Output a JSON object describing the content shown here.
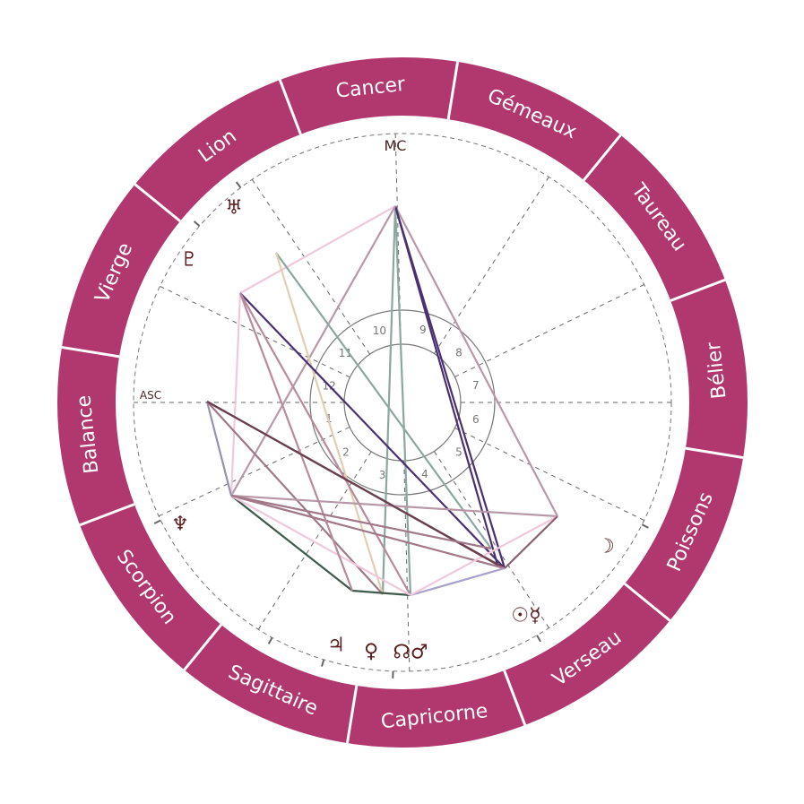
{
  "colors": {
    "ring": "#b0386f",
    "ring_divider": "#ffffff",
    "sign_text": "#ffffff",
    "glyph": "#5a1e1e",
    "cusp_line": "#666666",
    "house_circle": "#777777"
  },
  "signs": [
    "Cancer",
    "Lion",
    "Vierge",
    "Balance",
    "Scorpion",
    "Sagittaire",
    "Capricorne",
    "Verseau",
    "Poissons",
    "Bélier",
    "Taureau",
    "Gémeaux"
  ],
  "angles": {
    "asc": "ASC",
    "mc": "MC"
  },
  "houses": [
    "1",
    "2",
    "3",
    "4",
    "5",
    "6",
    "7",
    "8",
    "9",
    "10",
    "11",
    "12"
  ],
  "planets": [
    {
      "name": "uranus",
      "glyph": "♅"
    },
    {
      "name": "pluto",
      "glyph": "♇"
    },
    {
      "name": "neptune",
      "glyph": "♆"
    },
    {
      "name": "jupiter",
      "glyph": "♃"
    },
    {
      "name": "venus",
      "glyph": "♀"
    },
    {
      "name": "node-mars",
      "glyph": "☊♂"
    },
    {
      "name": "sun-mercury",
      "glyph": "☉☿"
    },
    {
      "name": "moon",
      "glyph": "☽"
    }
  ]
}
